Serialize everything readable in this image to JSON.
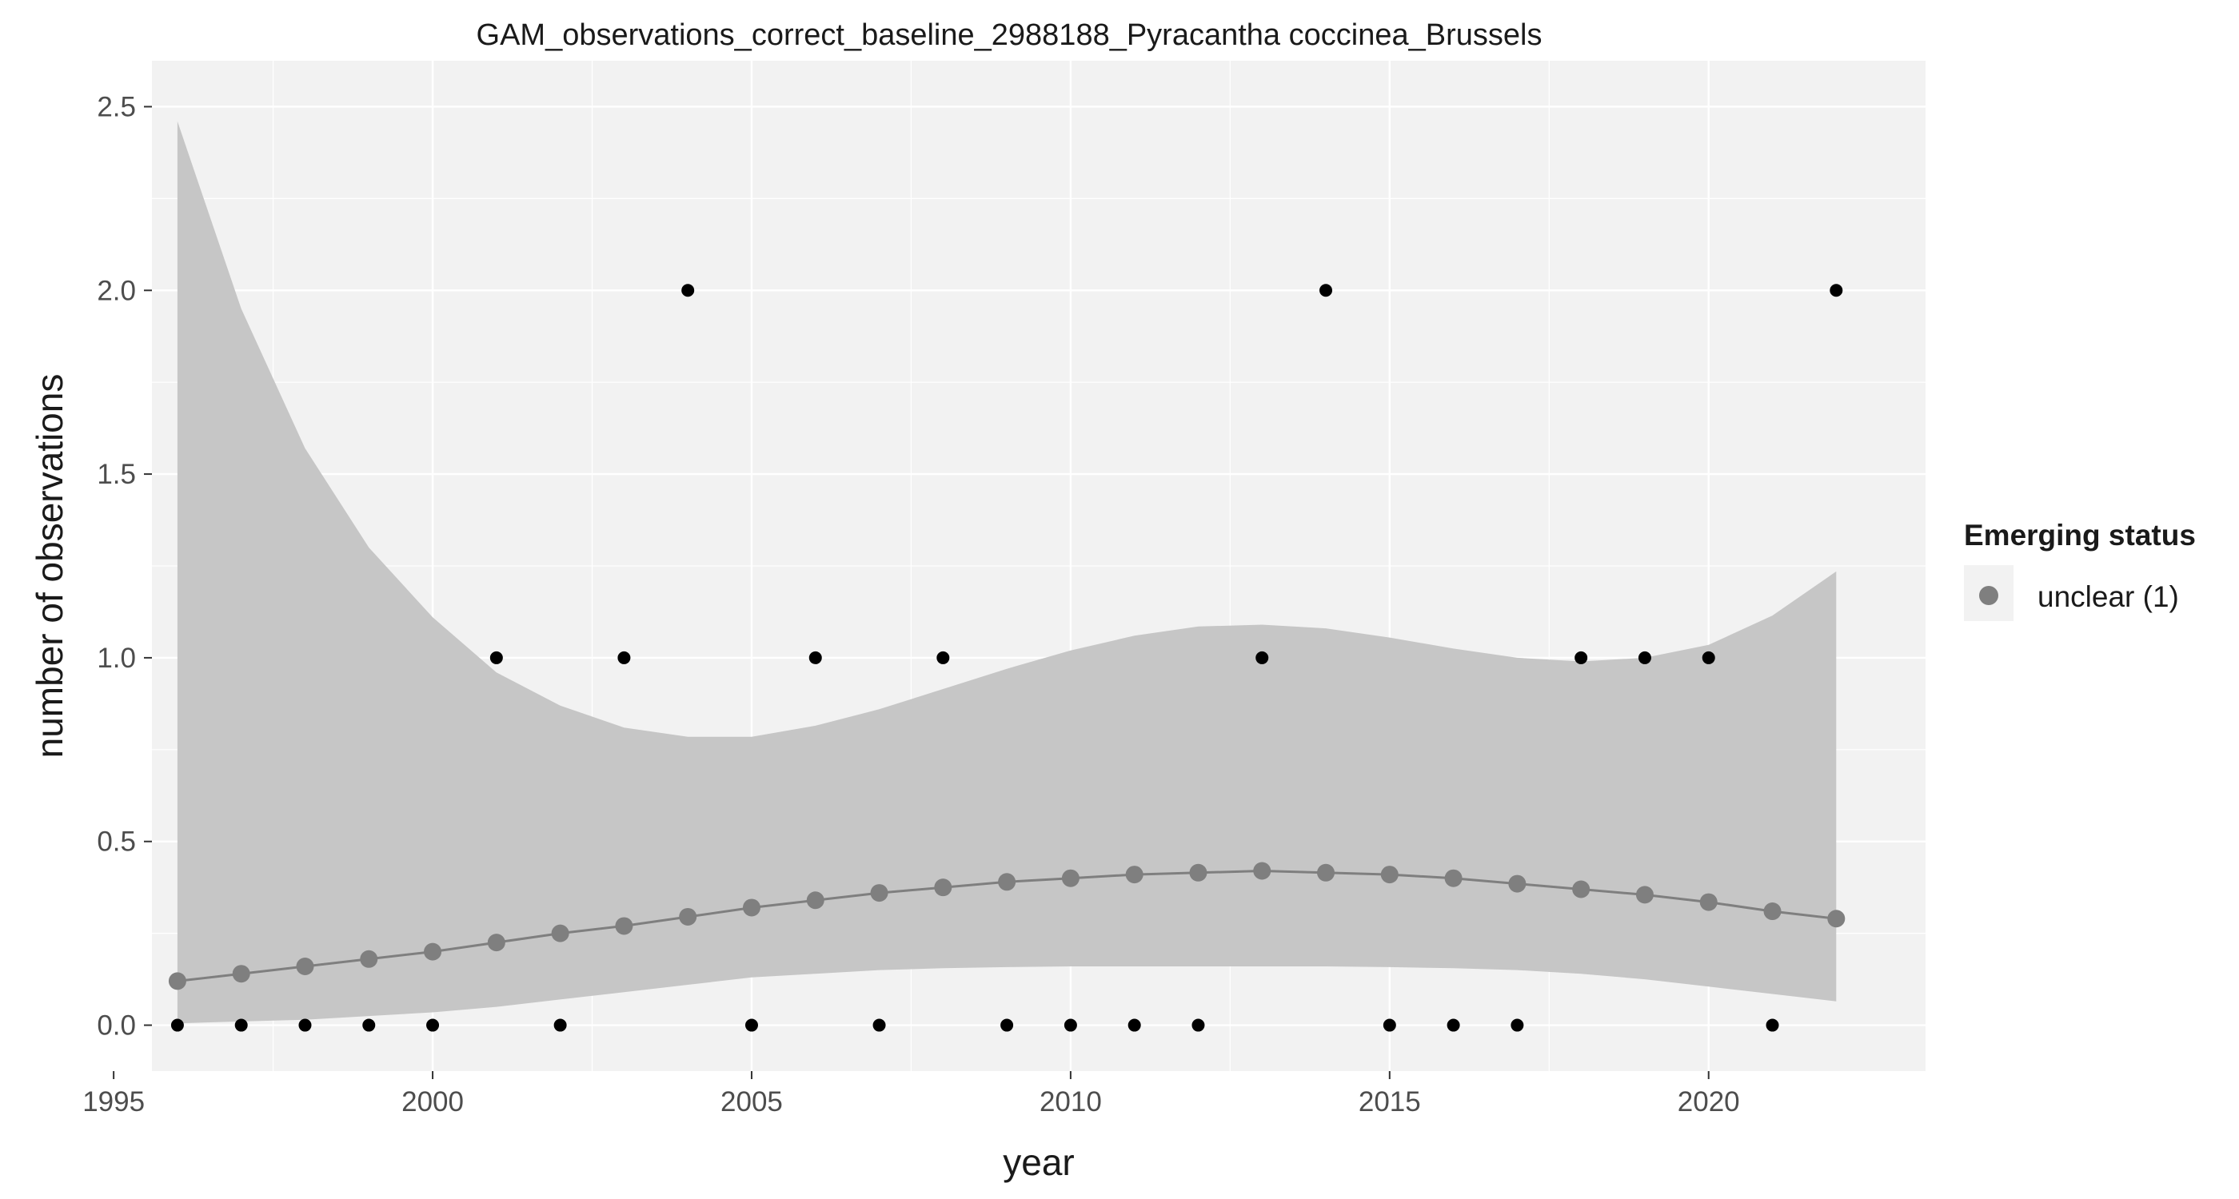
{
  "chart_data": {
    "type": "scatter",
    "title": "GAM_observations_correct_baseline_2988188_Pyracantha coccinea_Brussels",
    "xlabel": "year",
    "ylabel": "number of observations",
    "xlim": [
      1995.6,
      2023.4
    ],
    "ylim": [
      -0.125,
      2.625
    ],
    "x_ticks": [
      1995,
      2000,
      2005,
      2010,
      2015,
      2020
    ],
    "y_ticks": [
      0.0,
      0.5,
      1.0,
      1.5,
      2.0,
      2.5
    ],
    "y_tick_labels": [
      "0.0",
      "0.5",
      "1.0",
      "1.5",
      "2.0",
      "2.5"
    ],
    "grid": true,
    "legend": {
      "title": "Emerging status",
      "placement": "right",
      "entries": [
        {
          "label": "unclear (1)",
          "color": "#7f7f7f"
        }
      ]
    },
    "colors": {
      "panel": "#f2f2f2",
      "grid": "#ffffff",
      "ribbon": "#c6c6c6",
      "fit": "#7f7f7f",
      "observed": "#000000"
    },
    "observations": {
      "name": "observed",
      "x": [
        1996,
        1997,
        1998,
        1999,
        2000,
        2001,
        2002,
        2003,
        2004,
        2005,
        2006,
        2007,
        2008,
        2009,
        2010,
        2011,
        2012,
        2013,
        2014,
        2015,
        2016,
        2017,
        2018,
        2019,
        2020,
        2021,
        2022
      ],
      "y": [
        0,
        0,
        0,
        0,
        0,
        1,
        0,
        1,
        2,
        0,
        1,
        0,
        1,
        0,
        0,
        0,
        0,
        1,
        2,
        0,
        0,
        0,
        1,
        1,
        1,
        0,
        2
      ]
    },
    "fit": {
      "name": "unclear (1)",
      "x": [
        1996,
        1997,
        1998,
        1999,
        2000,
        2001,
        2002,
        2003,
        2004,
        2005,
        2006,
        2007,
        2008,
        2009,
        2010,
        2011,
        2012,
        2013,
        2014,
        2015,
        2016,
        2017,
        2018,
        2019,
        2020,
        2021,
        2022
      ],
      "y": [
        0.12,
        0.14,
        0.16,
        0.18,
        0.2,
        0.225,
        0.25,
        0.27,
        0.295,
        0.32,
        0.34,
        0.36,
        0.375,
        0.39,
        0.4,
        0.41,
        0.415,
        0.42,
        0.415,
        0.41,
        0.4,
        0.385,
        0.37,
        0.355,
        0.335,
        0.31,
        0.29
      ]
    },
    "ribbon": {
      "x": [
        1996,
        1997,
        1998,
        1999,
        2000,
        2001,
        2002,
        2003,
        2004,
        2005,
        2006,
        2007,
        2008,
        2009,
        2010,
        2011,
        2012,
        2013,
        2014,
        2015,
        2016,
        2017,
        2018,
        2019,
        2020,
        2021,
        2022
      ],
      "upper": [
        2.46,
        1.95,
        1.57,
        1.3,
        1.11,
        0.96,
        0.87,
        0.81,
        0.785,
        0.785,
        0.815,
        0.86,
        0.915,
        0.97,
        1.02,
        1.06,
        1.085,
        1.09,
        1.08,
        1.055,
        1.025,
        1.0,
        0.99,
        1.0,
        1.035,
        1.115,
        1.235
      ],
      "lower": [
        0.005,
        0.01,
        0.015,
        0.025,
        0.035,
        0.05,
        0.07,
        0.09,
        0.11,
        0.13,
        0.14,
        0.15,
        0.155,
        0.158,
        0.16,
        0.16,
        0.16,
        0.16,
        0.16,
        0.158,
        0.155,
        0.15,
        0.14,
        0.125,
        0.105,
        0.085,
        0.065
      ]
    }
  }
}
